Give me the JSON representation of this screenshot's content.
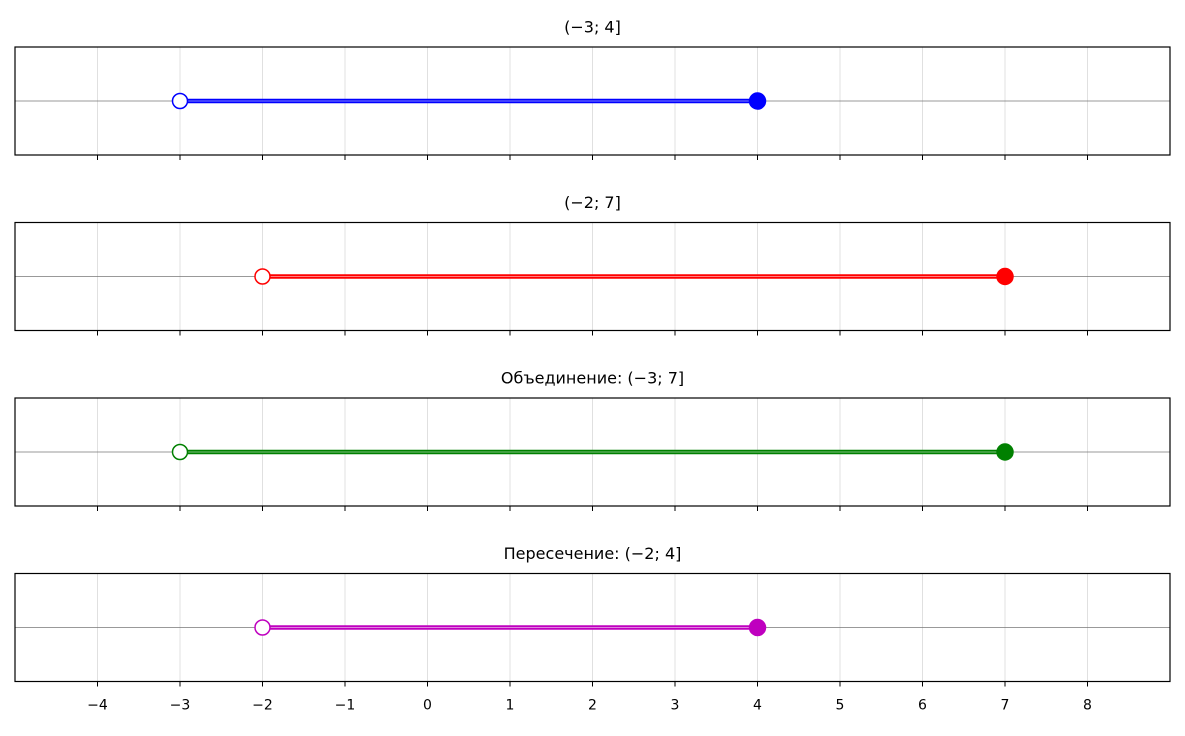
{
  "chart_data": [
    {
      "type": "interval",
      "title": "(−3;  4]",
      "values": [
        -3,
        4
      ],
      "left_closed": false,
      "right_closed": true,
      "color": "#0000ff",
      "xlim": [
        -5,
        9
      ],
      "xticks": [
        -4,
        -3,
        -2,
        -1,
        0,
        1,
        2,
        3,
        4,
        5,
        6,
        7,
        8
      ],
      "grid": true
    },
    {
      "type": "interval",
      "title": "(−2;  7]",
      "values": [
        -2,
        7
      ],
      "left_closed": false,
      "right_closed": true,
      "color": "#ff0000",
      "xlim": [
        -5,
        9
      ],
      "xticks": [
        -4,
        -3,
        -2,
        -1,
        0,
        1,
        2,
        3,
        4,
        5,
        6,
        7,
        8
      ],
      "grid": true
    },
    {
      "type": "interval",
      "title": "Объединение: (−3;  7]",
      "values": [
        -3,
        7
      ],
      "left_closed": false,
      "right_closed": true,
      "color": "#008000",
      "xlim": [
        -5,
        9
      ],
      "xticks": [
        -4,
        -3,
        -2,
        -1,
        0,
        1,
        2,
        3,
        4,
        5,
        6,
        7,
        8
      ],
      "grid": true
    },
    {
      "type": "interval",
      "title": "Пересечение: (−2;  4]",
      "values": [
        -2,
        4
      ],
      "left_closed": false,
      "right_closed": true,
      "color": "#bf00bf",
      "xlim": [
        -5,
        9
      ],
      "xticks": [
        {
          "value": -4,
          "label": "−4"
        },
        {
          "value": -3,
          "label": "−3"
        },
        {
          "value": -2,
          "label": "−2"
        },
        {
          "value": -1,
          "label": "−1"
        },
        0,
        1,
        2,
        3,
        4,
        5,
        6,
        7,
        8
      ],
      "grid": true
    }
  ]
}
